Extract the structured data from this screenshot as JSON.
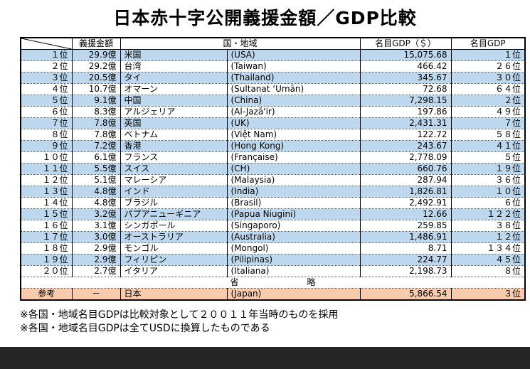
{
  "title": "日本赤十字公開義援金額／GDP比較",
  "table": {
    "headers": {
      "corner": "",
      "amount": "義援金額",
      "country": "国・地域",
      "gdp": "名目GDP（＄）",
      "gdp_rank": "名目GDP"
    },
    "rows": [
      {
        "rank": "１位",
        "amount": "29.9億",
        "name_jp": "米国",
        "name_en": "(USA)",
        "gdp": "15,075.68",
        "gdp_rank": "１位"
      },
      {
        "rank": "２位",
        "amount": "29.2億",
        "name_jp": "台湾",
        "name_en": "(Taiwan)",
        "gdp": "466.42",
        "gdp_rank": "２６位"
      },
      {
        "rank": "３位",
        "amount": "20.5億",
        "name_jp": "タイ",
        "name_en": "(Thailand)",
        "gdp": "345.67",
        "gdp_rank": "３０位"
      },
      {
        "rank": "４位",
        "amount": "10.7億",
        "name_jp": "オマーン",
        "name_en": "(Sultanat ‘Umān)",
        "gdp": "72.68",
        "gdp_rank": "６４位"
      },
      {
        "rank": "５位",
        "amount": "9.1億",
        "name_jp": "中国",
        "name_en": "(China)",
        "gdp": "7,298.15",
        "gdp_rank": "２位"
      },
      {
        "rank": "６位",
        "amount": "8.3億",
        "name_jp": "アルジェリア",
        "name_en": "(Al-Jazā'ir)",
        "gdp": "197.86",
        "gdp_rank": "４９位"
      },
      {
        "rank": "７位",
        "amount": "7.8億",
        "name_jp": "英国",
        "name_en": "(UK)",
        "gdp": "2,431.31",
        "gdp_rank": "７位"
      },
      {
        "rank": "８位",
        "amount": "7.8億",
        "name_jp": "ベトナム",
        "name_en": "(Việt Nam)",
        "gdp": "122.72",
        "gdp_rank": "５８位"
      },
      {
        "rank": "９位",
        "amount": "7.2億",
        "name_jp": "香港",
        "name_en": "(Hong Kong)",
        "gdp": "243.67",
        "gdp_rank": "４１位"
      },
      {
        "rank": "１０位",
        "amount": "6.1億",
        "name_jp": "フランス",
        "name_en": "(Française)",
        "gdp": "2,778.09",
        "gdp_rank": "５位"
      },
      {
        "rank": "１１位",
        "amount": "5.5億",
        "name_jp": "スイス",
        "name_en": "(CH)",
        "gdp": "660.76",
        "gdp_rank": "１９位"
      },
      {
        "rank": "１２位",
        "amount": "5.1億",
        "name_jp": "マレーシア",
        "name_en": "(Malaysia)",
        "gdp": "287.94",
        "gdp_rank": "３６位"
      },
      {
        "rank": "１３位",
        "amount": "4.8億",
        "name_jp": "インド",
        "name_en": "(India)",
        "gdp": "1,826.81",
        "gdp_rank": "１０位"
      },
      {
        "rank": "１４位",
        "amount": "4.8億",
        "name_jp": "ブラジル",
        "name_en": "(Brasil)",
        "gdp": "2,492.91",
        "gdp_rank": "６位"
      },
      {
        "rank": "１５位",
        "amount": "3.2億",
        "name_jp": "パプアニューギニア",
        "name_en": "(Papua Niugini)",
        "gdp": "12.66",
        "gdp_rank": "１２２位"
      },
      {
        "rank": "１６位",
        "amount": "3.1億",
        "name_jp": "シンガポール",
        "name_en": "(Singaporo)",
        "gdp": "259.85",
        "gdp_rank": "３８位"
      },
      {
        "rank": "１７位",
        "amount": "3.0億",
        "name_jp": "オーストラリア",
        "name_en": "(Australia)",
        "gdp": "1,486.91",
        "gdp_rank": "１２位"
      },
      {
        "rank": "１８位",
        "amount": "2.9億",
        "name_jp": "モンゴル",
        "name_en": "(Mongol)",
        "gdp": "8.71",
        "gdp_rank": "１３４位"
      },
      {
        "rank": "１９位",
        "amount": "2.9億",
        "name_jp": "フィリピン",
        "name_en": "(Pilipinas)",
        "gdp": "224.77",
        "gdp_rank": "４５位"
      },
      {
        "rank": "２０位",
        "amount": "2.7億",
        "name_jp": "イタリア",
        "name_en": "(Italiana)",
        "gdp": "2,198.73",
        "gdp_rank": "８位"
      }
    ],
    "omitted_label": "省　　　　　　　　略",
    "reference_row": {
      "label": "参考",
      "amount": "－",
      "name_jp": "日本",
      "name_en": "(Japan)",
      "gdp": "5,866.54",
      "gdp_rank": "３位"
    }
  },
  "footnotes": [
    "※各国・地域名目GDPは比較対象として２００１１年当時のものを採用",
    "※各国・地域名目GDPは全てUSDに換算したものである"
  ],
  "colors": {
    "stripe": "#BDD7EE",
    "reference_row": "#F8CBAD",
    "footer_bar": "#262626",
    "border": "#000000"
  }
}
